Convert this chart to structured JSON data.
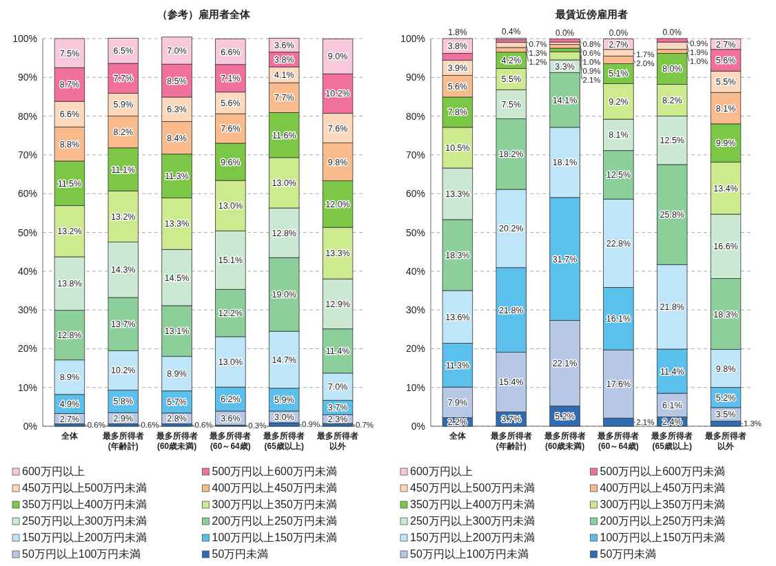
{
  "chart_data": [
    {
      "type": "bar",
      "stacked": true,
      "title": "（参考）雇用者全体",
      "categories": [
        "全体",
        "最多所得者\n(年齢計)",
        "最多所得者\n(60歳未満)",
        "最多所得者\n(60～64歳)",
        "最多所得者\n(65歳以上)",
        "最多所得者以外"
      ],
      "ylim": [
        0,
        100
      ],
      "yticks": [
        {
          "value": 0,
          "label": "0%"
        },
        {
          "value": 10,
          "label": "10%"
        },
        {
          "value": 20,
          "label": "20%"
        },
        {
          "value": 30,
          "label": "30%"
        },
        {
          "value": 40,
          "label": "40%"
        },
        {
          "value": 50,
          "label": "50%"
        },
        {
          "value": 60,
          "label": "60%"
        },
        {
          "value": 70,
          "label": "70%"
        },
        {
          "value": 80,
          "label": "80%"
        },
        {
          "value": 90,
          "label": "90%"
        },
        {
          "value": 100,
          "label": "100%"
        }
      ],
      "grid": "y",
      "legend": "bottom",
      "series": [
        {
          "name": "50万円未満",
          "color": "#2f6db3",
          "values": [
            0.6,
            0.6,
            0.6,
            0.3,
            0.9,
            0.7
          ],
          "value_labels": [
            "0.6%",
            "0.6%",
            "0.6%",
            "0.3%",
            "0.9%",
            "0.7%"
          ]
        },
        {
          "name": "50万円以上100万円未満",
          "color": "#b6c8e6",
          "values": [
            2.7,
            2.9,
            2.8,
            3.6,
            3.0,
            2.3
          ],
          "value_labels": [
            "2.7%",
            "2.9%",
            "2.8%",
            "3.6%",
            "3.0%",
            "2.3%"
          ]
        },
        {
          "name": "100万円以上150万円未満",
          "color": "#5bc0ec",
          "values": [
            4.9,
            5.8,
            5.7,
            6.2,
            5.9,
            3.7
          ],
          "value_labels": [
            "4.9%",
            "5.8%",
            "5.7%",
            "6.2%",
            "5.9%",
            "3.7%"
          ]
        },
        {
          "name": "150万円以上200万円未満",
          "color": "#bfe6f8",
          "values": [
            8.9,
            10.2,
            8.9,
            13.0,
            14.7,
            7.0
          ],
          "value_labels": [
            "8.9%",
            "10.2%",
            "8.9%",
            "13.0%",
            "14.7%",
            "7.0%"
          ]
        },
        {
          "name": "200万円以上250万円未満",
          "color": "#8ccf9b",
          "values": [
            12.8,
            13.7,
            13.1,
            12.2,
            19.0,
            11.4
          ],
          "value_labels": [
            "12.8%",
            "13.7%",
            "13.1%",
            "12.2%",
            "19.0%",
            "11.4%"
          ]
        },
        {
          "name": "250万円以上300万円未満",
          "color": "#cbe9d2",
          "values": [
            13.8,
            14.3,
            14.5,
            15.1,
            12.8,
            12.9
          ],
          "value_labels": [
            "13.8%",
            "14.3%",
            "14.5%",
            "15.1%",
            "12.8%",
            "12.9%"
          ]
        },
        {
          "name": "300万円以上350万円未満",
          "color": "#cdea8e",
          "values": [
            13.2,
            13.2,
            13.3,
            13.0,
            13.0,
            13.3
          ],
          "value_labels": [
            "13.2%",
            "13.2%",
            "13.3%",
            "13.0%",
            "13.0%",
            "13.3%"
          ]
        },
        {
          "name": "350万円以上400万円未満",
          "color": "#7cc846",
          "values": [
            11.5,
            11.1,
            11.3,
            9.6,
            11.6,
            12.0
          ],
          "value_labels": [
            "11.5%",
            "11.1%",
            "11.3%",
            "9.6%",
            "11.6%",
            "12.0%"
          ]
        },
        {
          "name": "400万円以上450万円未満",
          "color": "#f9bb8c",
          "values": [
            8.8,
            8.2,
            8.4,
            7.6,
            7.7,
            9.8
          ],
          "value_labels": [
            "8.8%",
            "8.2%",
            "8.4%",
            "7.6%",
            "7.7%",
            "9.8%"
          ]
        },
        {
          "name": "450万円以上500万円未満",
          "color": "#fcd9bd",
          "values": [
            6.6,
            5.9,
            6.3,
            5.6,
            4.1,
            7.6
          ],
          "value_labels": [
            "6.6%",
            "5.9%",
            "6.3%",
            "5.6%",
            "4.1%",
            "7.6%"
          ]
        },
        {
          "name": "500万円以上600万円未満",
          "color": "#f2709d",
          "values": [
            8.7,
            7.7,
            8.5,
            7.1,
            3.8,
            10.2
          ],
          "value_labels": [
            "8.7%",
            "7.7%",
            "8.5%",
            "7.1%",
            "3.8%",
            "10.2%"
          ]
        },
        {
          "name": "600万円以上",
          "color": "#f9c8dc",
          "values": [
            7.5,
            6.5,
            7.0,
            6.6,
            3.6,
            9.0
          ],
          "value_labels": [
            "7.5%",
            "6.5%",
            "7.0%",
            "6.6%",
            "3.6%",
            "9.0%"
          ]
        }
      ]
    },
    {
      "type": "bar",
      "stacked": true,
      "title": "最賃近傍雇用者",
      "categories": [
        "全体",
        "最多所得者\n(年齢計)",
        "最多所得者\n(60歳未満)",
        "最多所得者\n(60～64歳)",
        "最多所得者\n(65歳以上)",
        "最多所得者以外"
      ],
      "ylim": [
        0,
        100
      ],
      "yticks": [
        {
          "value": 0,
          "label": "0%"
        },
        {
          "value": 10,
          "label": "10%"
        },
        {
          "value": 20,
          "label": "20%"
        },
        {
          "value": 30,
          "label": "30%"
        },
        {
          "value": 40,
          "label": "40%"
        },
        {
          "value": 50,
          "label": "50%"
        },
        {
          "value": 60,
          "label": "60%"
        },
        {
          "value": 70,
          "label": "70%"
        },
        {
          "value": 80,
          "label": "80%"
        },
        {
          "value": 90,
          "label": "90%"
        },
        {
          "value": 100,
          "label": "100%"
        }
      ],
      "grid": "y",
      "legend": "bottom",
      "series": [
        {
          "name": "50万円未満",
          "color": "#2f6db3",
          "values": [
            2.2,
            3.7,
            5.2,
            2.1,
            2.4,
            1.3
          ],
          "value_labels": [
            "2.2%",
            "3.7%",
            "5.2%",
            "2.1%",
            "2.4%",
            "1.3%"
          ]
        },
        {
          "name": "50万円以上100万円未満",
          "color": "#b6c8e6",
          "values": [
            7.9,
            15.4,
            22.1,
            17.6,
            6.1,
            3.5
          ],
          "value_labels": [
            "7.9%",
            "15.4%",
            "22.1%",
            "17.6%",
            "6.1%",
            "3.5%"
          ]
        },
        {
          "name": "100万円以上150万円未満",
          "color": "#5bc0ec",
          "values": [
            11.3,
            21.8,
            31.7,
            16.1,
            11.4,
            5.2
          ],
          "value_labels": [
            "11.3%",
            "21.8%",
            "31.7%",
            "16.1%",
            "11.4%",
            "5.2%"
          ]
        },
        {
          "name": "150万円以上200万円未満",
          "color": "#bfe6f8",
          "values": [
            13.6,
            20.2,
            18.1,
            22.8,
            21.8,
            9.8
          ],
          "value_labels": [
            "13.6%",
            "20.2%",
            "18.1%",
            "22.8%",
            "21.8%",
            "9.8%"
          ]
        },
        {
          "name": "200万円以上250万円未満",
          "color": "#8ccf9b",
          "values": [
            18.3,
            18.2,
            14.1,
            12.5,
            25.8,
            18.3
          ],
          "value_labels": [
            "18.3%",
            "18.2%",
            "14.1%",
            "12.5%",
            "25.8%",
            "18.3%"
          ]
        },
        {
          "name": "250万円以上300万円未満",
          "color": "#cbe9d2",
          "values": [
            13.3,
            7.5,
            3.3,
            8.1,
            12.5,
            16.6
          ],
          "value_labels": [
            "13.3%",
            "7.5%",
            "3.3%",
            "8.1%",
            "12.5%",
            "16.6%"
          ]
        },
        {
          "name": "300万円以上350万円未満",
          "color": "#cdea8e",
          "values": [
            10.5,
            5.5,
            2.1,
            9.2,
            8.2,
            13.4
          ],
          "value_labels": [
            "10.5%",
            "5.5%",
            "2.1%",
            "9.2%",
            "8.2%",
            "13.4%"
          ]
        },
        {
          "name": "350万円以上400万円未満",
          "color": "#7cc846",
          "values": [
            7.8,
            4.2,
            0.9,
            5.1,
            8.0,
            9.9
          ],
          "value_labels": [
            "7.8%",
            "4.2%",
            "0.9%",
            "5.1%",
            "8.0%",
            "9.9%"
          ]
        },
        {
          "name": "400万円以上450万円未満",
          "color": "#f9bb8c",
          "values": [
            5.6,
            1.2,
            1.0,
            2.0,
            1.0,
            8.1
          ],
          "value_labels": [
            "5.6%",
            "1.2%",
            "1.0%",
            "2.0%",
            "1.0%",
            "8.1%"
          ]
        },
        {
          "name": "450万円以上500万円未満",
          "color": "#fcd9bd",
          "values": [
            3.9,
            1.3,
            0.6,
            1.7,
            1.9,
            5.5
          ],
          "value_labels": [
            "3.9%",
            "1.3%",
            "0.6%",
            "1.7%",
            "1.9%",
            "5.5%"
          ]
        },
        {
          "name": "500万円以上600万円未満",
          "color": "#f2709d",
          "values": [
            1.8,
            0.7,
            0.8,
            0.0,
            0.9,
            5.6
          ],
          "value_labels": [
            "1.8%",
            "0.7%",
            "0.8%",
            "0.0%",
            "0.9%",
            "5.6%"
          ]
        },
        {
          "name": "600万円以上",
          "color": "#f9c8dc",
          "values": [
            3.8,
            0.4,
            0.0,
            2.7,
            0.0,
            2.7
          ],
          "value_labels": [
            "3.8%",
            "0.4%",
            "0.0%",
            "2.7%",
            "0.0%",
            "2.7%"
          ]
        }
      ]
    }
  ]
}
